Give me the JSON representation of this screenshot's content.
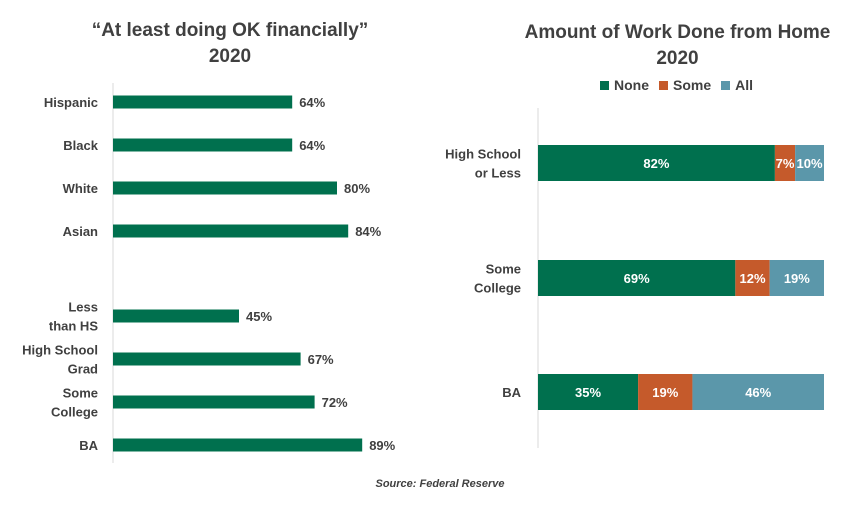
{
  "left_chart_title": "“At least doing OK financially”",
  "left_chart_subtitle": "2020",
  "right_chart_title": "Amount of Work Done from Home",
  "right_chart_subtitle": "2020",
  "source": "Source: Federal Reserve",
  "colors": {
    "none": "#00704e",
    "some": "#c55a2b",
    "all": "#5b97aa",
    "text": "#404040",
    "axis": "#d9d9d9"
  },
  "chart_data": [
    {
      "type": "bar",
      "orientation": "horizontal",
      "title": "“At least doing OK financially”",
      "subtitle": "2020",
      "categories": [
        "Hispanic",
        "Black",
        "White",
        "Asian",
        "Less than HS",
        "High School Grad",
        "Some College",
        "BA"
      ],
      "category_lines": [
        [
          "Hispanic"
        ],
        [
          "Black"
        ],
        [
          "White"
        ],
        [
          "Asian"
        ],
        [
          "Less",
          "than HS"
        ],
        [
          "High School",
          "Grad"
        ],
        [
          "Some",
          "College"
        ],
        [
          "BA"
        ]
      ],
      "values": [
        64,
        64,
        80,
        84,
        45,
        67,
        72,
        89
      ],
      "labels": [
        "64%",
        "64%",
        "80%",
        "84%",
        "45%",
        "67%",
        "72%",
        "89%"
      ],
      "unit": "%",
      "xlim": [
        0,
        100
      ],
      "legend": "none"
    },
    {
      "type": "bar",
      "orientation": "horizontal",
      "stacked": true,
      "title": "Amount of Work Done from Home",
      "subtitle": "2020",
      "categories": [
        "High School or Less",
        "Some College",
        "BA"
      ],
      "category_lines": [
        [
          "High School",
          "or Less"
        ],
        [
          "Some",
          "College"
        ],
        [
          "BA"
        ]
      ],
      "series": [
        {
          "name": "None",
          "values": [
            82,
            69,
            35
          ],
          "labels": [
            "82%",
            "69%",
            "35%"
          ]
        },
        {
          "name": "Some",
          "values": [
            7,
            12,
            19
          ],
          "labels": [
            "7%",
            "12%",
            "19%"
          ]
        },
        {
          "name": "All",
          "values": [
            10,
            19,
            46
          ],
          "labels": [
            "10%",
            "19%",
            "46%"
          ]
        }
      ],
      "unit": "%",
      "xlim": [
        0,
        100
      ],
      "legend": "top"
    }
  ]
}
